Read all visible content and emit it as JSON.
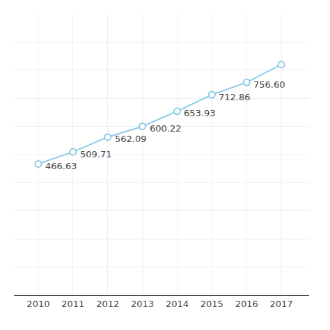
{
  "chart_data": {
    "type": "line",
    "x": [
      2010,
      2011,
      2012,
      2013,
      2014,
      2015,
      2016,
      2017
    ],
    "values": [
      466.63,
      509.71,
      562.09,
      600.22,
      653.93,
      712.86,
      756.6,
      820.0
    ],
    "value_labels": [
      "466.63",
      "509.71",
      "562.09",
      "600.22",
      "653.93",
      "712.86",
      "756.60",
      null
    ],
    "data_labels": true,
    "color": "#8ECDE6",
    "marker": "circle",
    "xlim": [
      2009.3,
      2017.8
    ],
    "xticks": [
      2010,
      2011,
      2012,
      2013,
      2014,
      2015,
      2016,
      2017
    ],
    "ylim": [
      0,
      1000
    ],
    "yticks": [
      0,
      100,
      200,
      300,
      400,
      500,
      600,
      700,
      800,
      900,
      1000
    ],
    "tick_labels": "x",
    "grid": true
  }
}
